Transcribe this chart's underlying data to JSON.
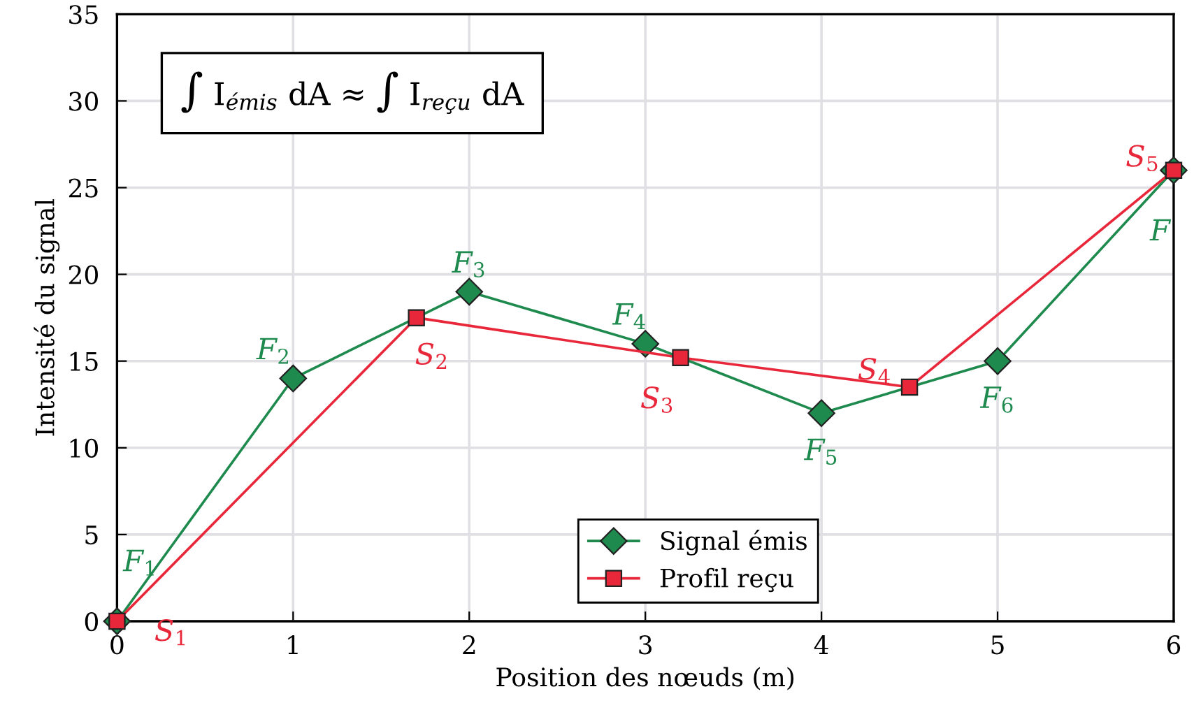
{
  "chart_data": {
    "type": "line",
    "xlabel": "Position des nœuds (m)",
    "ylabel": "Intensité du signal",
    "xlim": [
      0,
      6
    ],
    "xticks": [
      0,
      1,
      2,
      3,
      4,
      5,
      6
    ],
    "ylim": [
      0,
      35
    ],
    "yticks": [
      0,
      5,
      10,
      15,
      20,
      25,
      30,
      35
    ],
    "grid": true,
    "legend": "bottom",
    "series": [
      {
        "name": "Signal émis",
        "color": "#1e8a4e",
        "marker": "diamond",
        "x": [
          0,
          1,
          2,
          3,
          4,
          5,
          6
        ],
        "values": [
          0,
          14,
          19,
          16,
          12,
          15,
          26
        ]
      },
      {
        "name": "Profil reçu",
        "color": "#e8283a",
        "marker": "square",
        "x": [
          0,
          1.7,
          3.2,
          4.5,
          6
        ],
        "values": [
          0,
          17.5,
          15.2,
          13.5,
          26
        ]
      }
    ],
    "annotations": [
      "∫ I$_{émis}$ dA ≈ ∫ I$_{reçu}$ dA",
      {
        "text": "F$_{1}$",
        "x": 0,
        "y": 0
      },
      {
        "text": "F$_{2}$",
        "x": 1,
        "y": 14
      },
      {
        "text": "F$_{3}$",
        "x": 2,
        "y": 19
      },
      {
        "text": "F$_{4}$",
        "x": 3,
        "y": 16
      },
      {
        "text": "F$_{5}$",
        "x": 4,
        "y": 12
      },
      {
        "text": "F$_{6}$",
        "x": 5,
        "y": 15
      },
      {
        "text": "F",
        "x": 6,
        "y": 26
      },
      {
        "text": "S$_{1}$",
        "x": 0,
        "y": 0
      },
      {
        "text": "S$_{2}$",
        "x": 1.7,
        "y": 17.5
      },
      {
        "text": "S$_{3}$",
        "x": 3.2,
        "y": 15.2
      },
      {
        "text": "S$_{4}$",
        "x": 4.5,
        "y": 13.5
      },
      {
        "text": "S$_{5}$",
        "x": 6,
        "y": 26
      }
    ]
  }
}
